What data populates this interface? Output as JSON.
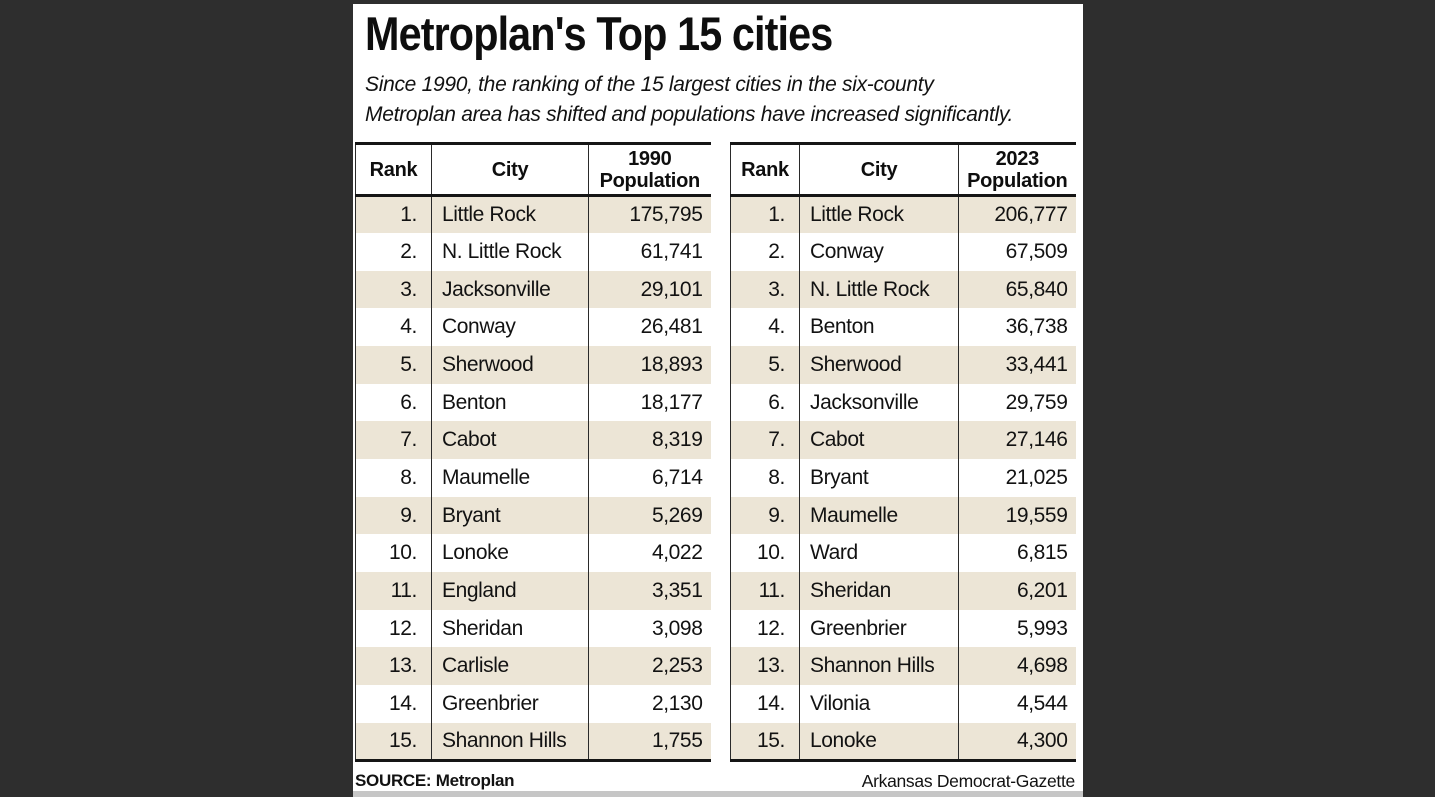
{
  "title": "Metroplan's Top 15 cities",
  "subtitle_lines": [
    "Since 1990, the ranking of the 15 largest cities in the six-county",
    "Metroplan area has shifted and populations have increased significantly."
  ],
  "source": "SOURCE: Metroplan",
  "credit": "Arkansas Democrat-Gazette",
  "colors": {
    "row_shade": "#ece5d6",
    "frame": "#2e2e2e",
    "border": "#151515"
  },
  "tables": [
    {
      "name": "1990",
      "headers": {
        "rank": "Rank",
        "city": "City",
        "pop_line1": "1990",
        "pop_line2": "Population"
      },
      "rows": [
        {
          "rank": "1.",
          "city": "Little Rock",
          "population": "175,795"
        },
        {
          "rank": "2.",
          "city": "N. Little Rock",
          "population": "61,741"
        },
        {
          "rank": "3.",
          "city": "Jacksonville",
          "population": "29,101"
        },
        {
          "rank": "4.",
          "city": "Conway",
          "population": "26,481"
        },
        {
          "rank": "5.",
          "city": "Sherwood",
          "population": "18,893"
        },
        {
          "rank": "6.",
          "city": "Benton",
          "population": "18,177"
        },
        {
          "rank": "7.",
          "city": "Cabot",
          "population": "8,319"
        },
        {
          "rank": "8.",
          "city": "Maumelle",
          "population": "6,714"
        },
        {
          "rank": "9.",
          "city": "Bryant",
          "population": "5,269"
        },
        {
          "rank": "10.",
          "city": "Lonoke",
          "population": "4,022"
        },
        {
          "rank": "11.",
          "city": "England",
          "population": "3,351"
        },
        {
          "rank": "12.",
          "city": "Sheridan",
          "population": "3,098"
        },
        {
          "rank": "13.",
          "city": "Carlisle",
          "population": "2,253"
        },
        {
          "rank": "14.",
          "city": "Greenbrier",
          "population": "2,130"
        },
        {
          "rank": "15.",
          "city": "Shannon Hills",
          "population": "1,755"
        }
      ]
    },
    {
      "name": "2023",
      "headers": {
        "rank": "Rank",
        "city": "City",
        "pop_line1": "2023",
        "pop_line2": "Population"
      },
      "rows": [
        {
          "rank": "1.",
          "city": "Little Rock",
          "population": "206,777"
        },
        {
          "rank": "2.",
          "city": "Conway",
          "population": "67,509"
        },
        {
          "rank": "3.",
          "city": "N. Little Rock",
          "population": "65,840"
        },
        {
          "rank": "4.",
          "city": "Benton",
          "population": "36,738"
        },
        {
          "rank": "5.",
          "city": "Sherwood",
          "population": "33,441"
        },
        {
          "rank": "6.",
          "city": "Jacksonville",
          "population": "29,759"
        },
        {
          "rank": "7.",
          "city": "Cabot",
          "population": "27,146"
        },
        {
          "rank": "8.",
          "city": "Bryant",
          "population": "21,025"
        },
        {
          "rank": "9.",
          "city": "Maumelle",
          "population": "19,559"
        },
        {
          "rank": "10.",
          "city": "Ward",
          "population": "6,815"
        },
        {
          "rank": "11.",
          "city": "Sheridan",
          "population": "6,201"
        },
        {
          "rank": "12.",
          "city": "Greenbrier",
          "population": "5,993"
        },
        {
          "rank": "13.",
          "city": "Shannon Hills",
          "population": "4,698"
        },
        {
          "rank": "14.",
          "city": "Vilonia",
          "population": "4,544"
        },
        {
          "rank": "15.",
          "city": "Lonoke",
          "population": "4,300"
        }
      ]
    }
  ],
  "chart_data": {
    "type": "table",
    "title": "Metroplan's Top 15 cities",
    "subtitle": "Since 1990, the ranking of the 15 largest cities in the six-county Metroplan area has shifted and populations have increased significantly.",
    "tables": [
      {
        "columns": [
          "Rank",
          "City",
          "1990 Population"
        ],
        "rows": [
          [
            1,
            "Little Rock",
            175795
          ],
          [
            2,
            "N. Little Rock",
            61741
          ],
          [
            3,
            "Jacksonville",
            29101
          ],
          [
            4,
            "Conway",
            26481
          ],
          [
            5,
            "Sherwood",
            18893
          ],
          [
            6,
            "Benton",
            18177
          ],
          [
            7,
            "Cabot",
            8319
          ],
          [
            8,
            "Maumelle",
            6714
          ],
          [
            9,
            "Bryant",
            5269
          ],
          [
            10,
            "Lonoke",
            4022
          ],
          [
            11,
            "England",
            3351
          ],
          [
            12,
            "Sheridan",
            3098
          ],
          [
            13,
            "Carlisle",
            2253
          ],
          [
            14,
            "Greenbrier",
            2130
          ],
          [
            15,
            "Shannon Hills",
            1755
          ]
        ]
      },
      {
        "columns": [
          "Rank",
          "City",
          "2023 Population"
        ],
        "rows": [
          [
            1,
            "Little Rock",
            206777
          ],
          [
            2,
            "Conway",
            67509
          ],
          [
            3,
            "N. Little Rock",
            65840
          ],
          [
            4,
            "Benton",
            36738
          ],
          [
            5,
            "Sherwood",
            33441
          ],
          [
            6,
            "Jacksonville",
            29759
          ],
          [
            7,
            "Cabot",
            27146
          ],
          [
            8,
            "Bryant",
            21025
          ],
          [
            9,
            "Maumelle",
            19559
          ],
          [
            10,
            "Ward",
            6815
          ],
          [
            11,
            "Sheridan",
            6201
          ],
          [
            12,
            "Greenbrier",
            5993
          ],
          [
            13,
            "Shannon Hills",
            4698
          ],
          [
            14,
            "Vilonia",
            4544
          ],
          [
            15,
            "Lonoke",
            4300
          ]
        ]
      }
    ],
    "source": "Metroplan",
    "credit": "Arkansas Democrat-Gazette"
  }
}
